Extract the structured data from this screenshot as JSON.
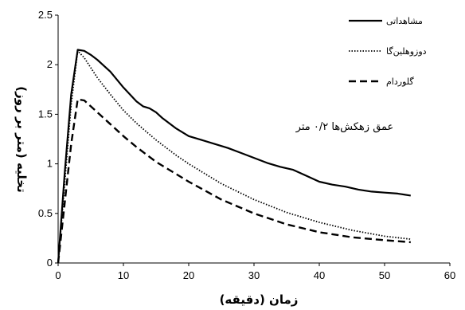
{
  "chart_data": {
    "type": "line",
    "xlabel": "زمان (دقیقه)",
    "ylabel": "تخلیه (متر بر روز)",
    "xlim": [
      0,
      60
    ],
    "ylim": [
      0,
      2.5
    ],
    "xticks": [
      "0",
      "10",
      "20",
      "30",
      "40",
      "50",
      "60"
    ],
    "yticks": [
      "0",
      "0.5",
      "1",
      "1.5",
      "2",
      "2.5"
    ],
    "grid": false,
    "legend_position": "top-right",
    "annotation": "عمق زهکش‌ها ۰/۲ متر",
    "series": [
      {
        "name": "مشاهداتی",
        "style": "solid",
        "color": "#000000",
        "x": [
          0,
          1,
          2,
          3,
          4,
          5,
          6,
          8,
          10,
          12,
          13,
          14,
          15,
          16,
          18,
          20,
          22,
          24,
          26,
          28,
          30,
          32,
          34,
          36,
          38,
          40,
          42,
          44,
          46,
          48,
          50,
          52,
          54
        ],
        "y": [
          0,
          0.9,
          1.7,
          2.15,
          2.14,
          2.1,
          2.05,
          1.93,
          1.77,
          1.63,
          1.58,
          1.56,
          1.52,
          1.46,
          1.36,
          1.28,
          1.24,
          1.2,
          1.16,
          1.11,
          1.06,
          1.01,
          0.97,
          0.94,
          0.88,
          0.82,
          0.79,
          0.77,
          0.74,
          0.72,
          0.71,
          0.7,
          0.68
        ]
      },
      {
        "name": "دوزوهلین‌گا",
        "style": "dotted",
        "color": "#000000",
        "x": [
          0,
          1,
          2,
          3,
          4,
          5,
          6,
          8,
          10,
          12,
          15,
          18,
          20,
          25,
          30,
          35,
          40,
          45,
          50,
          54
        ],
        "y": [
          0,
          0.8,
          1.6,
          2.14,
          2.07,
          1.97,
          1.87,
          1.7,
          1.54,
          1.41,
          1.24,
          1.09,
          1.0,
          0.8,
          0.64,
          0.51,
          0.41,
          0.33,
          0.27,
          0.24
        ]
      },
      {
        "name": "گلوردام",
        "style": "dashed",
        "color": "#000000",
        "x": [
          0,
          1,
          2,
          3,
          4,
          5,
          6,
          8,
          10,
          12,
          15,
          18,
          20,
          25,
          30,
          35,
          40,
          45,
          50,
          54
        ],
        "y": [
          0,
          0.6,
          1.2,
          1.65,
          1.64,
          1.58,
          1.52,
          1.4,
          1.28,
          1.17,
          1.02,
          0.9,
          0.82,
          0.64,
          0.5,
          0.39,
          0.31,
          0.26,
          0.23,
          0.21
        ]
      }
    ]
  }
}
